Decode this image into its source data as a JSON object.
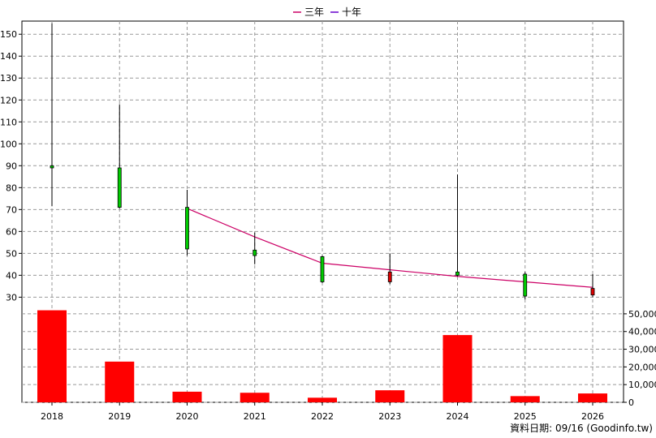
{
  "chart_data": {
    "type": "candlestick-with-volume",
    "legend": [
      {
        "name": "三年",
        "color": "#cc0066"
      },
      {
        "name": "十年",
        "color": "#6600cc"
      }
    ],
    "legend_position": "top-center",
    "categories": [
      "2018",
      "2019",
      "2020",
      "2021",
      "2022",
      "2023",
      "2024",
      "2025",
      "2026"
    ],
    "price_axis": {
      "ylim": [
        22,
        156
      ],
      "ticks": [
        30,
        40,
        50,
        60,
        70,
        80,
        90,
        100,
        110,
        120,
        130,
        140,
        150
      ]
    },
    "volume_axis": {
      "ylim": [
        0,
        55000
      ],
      "ticks": [
        0,
        10000,
        20000,
        30000,
        40000,
        50000
      ],
      "tick_labels": [
        "0",
        "10,000",
        "20,000",
        "30,000",
        "40,000",
        "50,000"
      ]
    },
    "candles": [
      {
        "x": "2018",
        "open": 89,
        "close": 90,
        "high": 155,
        "low": 71.5,
        "color": "#00cc00"
      },
      {
        "x": "2019",
        "open": 71,
        "close": 89,
        "high": 118,
        "low": 70.5,
        "color": "#00cc00"
      },
      {
        "x": "2020",
        "open": 52,
        "close": 71,
        "high": 79,
        "low": 49,
        "color": "#00cc00"
      },
      {
        "x": "2021",
        "open": 49,
        "close": 51.5,
        "high": 59.5,
        "low": 45,
        "color": "#00cc00"
      },
      {
        "x": "2022",
        "open": 37,
        "close": 48.5,
        "high": 49,
        "low": 36.5,
        "color": "#00cc00"
      },
      {
        "x": "2023",
        "open": 41.5,
        "close": 37,
        "high": 50,
        "low": 36,
        "color": "#dd0000"
      },
      {
        "x": "2024",
        "open": 40,
        "close": 41.5,
        "high": 86,
        "low": 39.5,
        "color": "#00cc00"
      },
      {
        "x": "2025",
        "open": 30.5,
        "close": 40.5,
        "high": 41.5,
        "low": 29,
        "color": "#00cc00"
      },
      {
        "x": "2026",
        "open": 34,
        "close": 31,
        "high": 40.5,
        "low": 30,
        "color": "#dd0000"
      }
    ],
    "series": [
      {
        "name": "三年",
        "color": "#cc0066",
        "x": [
          "2020",
          "2021",
          "2022",
          "2023",
          "2024",
          "2025",
          "2026"
        ],
        "values": [
          70.5,
          57.5,
          45.5,
          42.5,
          39.5,
          37,
          34.5
        ]
      }
    ],
    "volume": [
      {
        "x": "2018",
        "value": 52000
      },
      {
        "x": "2019",
        "value": 23000
      },
      {
        "x": "2020",
        "value": 6000
      },
      {
        "x": "2021",
        "value": 5400
      },
      {
        "x": "2022",
        "value": 2600
      },
      {
        "x": "2023",
        "value": 6800
      },
      {
        "x": "2024",
        "value": 38000
      },
      {
        "x": "2025",
        "value": 3500
      },
      {
        "x": "2026",
        "value": 5000
      }
    ],
    "volume_color": "#ff0000",
    "grid": true,
    "footer": "資料日期: 09/16 (Goodinfo.tw)"
  }
}
